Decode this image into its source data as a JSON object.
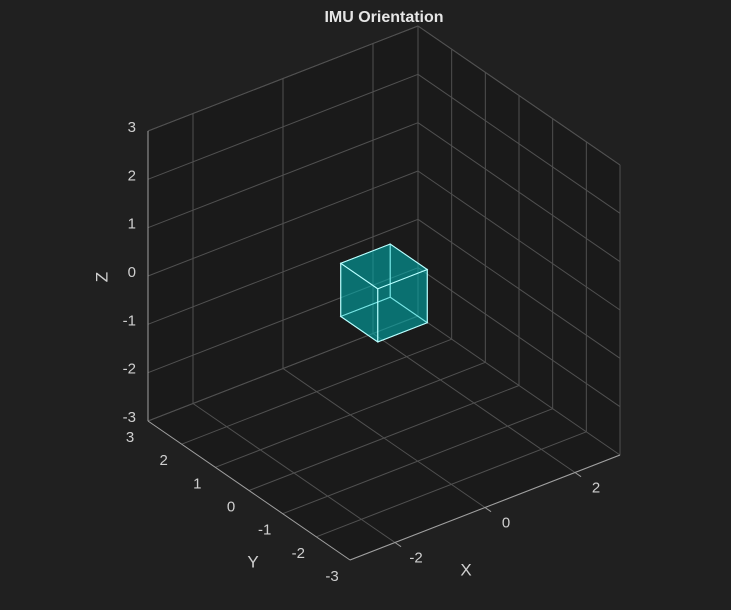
{
  "chart_data": {
    "type": "3d",
    "title": "IMU Orientation",
    "xlabel": "X",
    "ylabel": "Y",
    "zlabel": "Z",
    "xlim": [
      -3,
      3
    ],
    "ylim": [
      -3,
      3
    ],
    "zlim": [
      -3,
      3
    ],
    "xticks": [
      -2,
      0,
      2
    ],
    "yticks": [
      -3,
      -2,
      -1,
      0,
      1,
      2,
      3
    ],
    "zticks": [
      -3,
      -2,
      -1,
      0,
      1,
      2,
      3
    ],
    "grid": true,
    "cube": {
      "center": [
        0,
        0,
        0
      ],
      "size": 1.1,
      "color": "#00b3b3"
    }
  }
}
